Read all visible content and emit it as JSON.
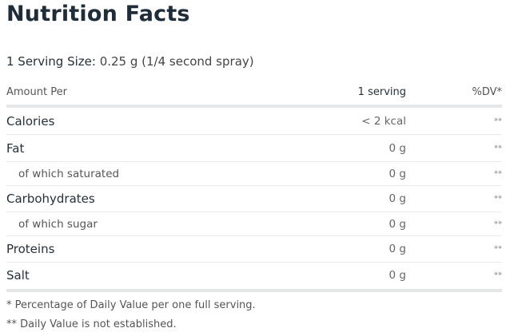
{
  "title": "Nutrition Facts",
  "serving": {
    "label": "1 Serving Size:",
    "value": "0.25 g (1/4 second spray)"
  },
  "header": {
    "amount": "Amount Per",
    "serving": "1 serving",
    "dv": "%DV*"
  },
  "rows": [
    {
      "name": "Calories",
      "value": "< 2 kcal",
      "dv": "**",
      "sub": false
    },
    {
      "name": "Fat",
      "value": "0 g",
      "dv": "**",
      "sub": false
    },
    {
      "name": "of which saturated",
      "value": "0 g",
      "dv": "**",
      "sub": true
    },
    {
      "name": "Carbohydrates",
      "value": "0 g",
      "dv": "**",
      "sub": false
    },
    {
      "name": "of which sugar",
      "value": "0 g",
      "dv": "**",
      "sub": true
    },
    {
      "name": "Proteins",
      "value": "0 g",
      "dv": "**",
      "sub": false
    },
    {
      "name": "Salt",
      "value": "0 g",
      "dv": "**",
      "sub": false
    }
  ],
  "footnotes": [
    "* Percentage of Daily Value per one full serving.",
    "** Daily Value is not established."
  ]
}
